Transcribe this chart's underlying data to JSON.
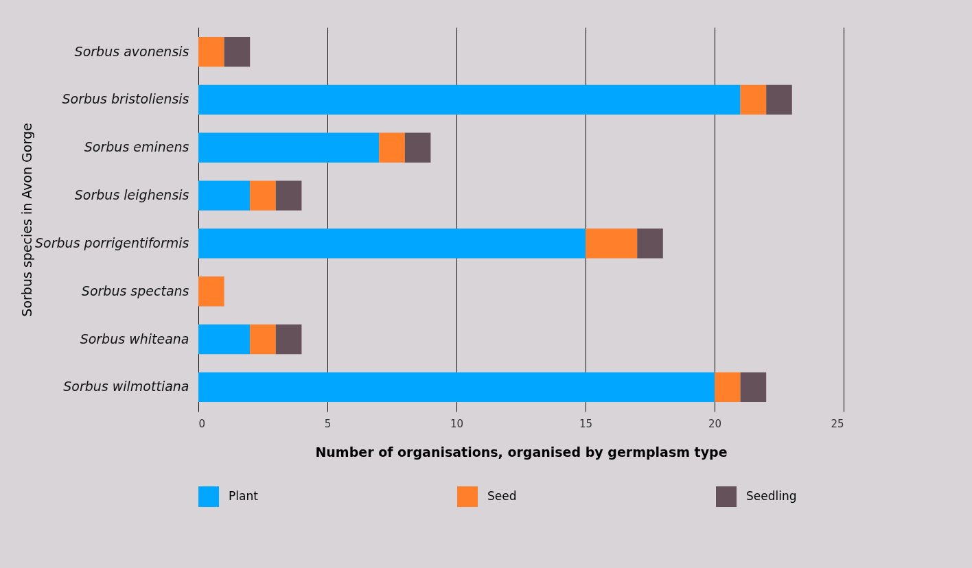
{
  "chart_data": {
    "type": "bar",
    "orientation": "horizontal",
    "stacked": true,
    "xlabel": "Number of organisations, organised by germplasm type",
    "ylabel": "Sorbus species in Avon Gorge",
    "categories": [
      "Sorbus avonensis",
      "Sorbus bristoliensis",
      "Sorbus eminens",
      "Sorbus leighensis",
      "Sorbus porrigentiformis",
      "Sorbus spectans",
      "Sorbus whiteana",
      "Sorbus wilmottiana"
    ],
    "series": [
      {
        "name": "Plant",
        "color": "#00a6ff",
        "values": [
          0,
          21,
          7,
          2,
          15,
          0,
          2,
          20
        ]
      },
      {
        "name": "Seed",
        "color": "#ff7f2a",
        "values": [
          1,
          1,
          1,
          1,
          2,
          1,
          1,
          1
        ]
      },
      {
        "name": "Seedling",
        "color": "#645159",
        "values": [
          1,
          1,
          1,
          1,
          1,
          0,
          1,
          1
        ]
      }
    ],
    "xlim": [
      0,
      25
    ],
    "xticks": [
      0,
      5,
      10,
      15,
      20,
      25
    ],
    "grid": "x",
    "legend": "bottom"
  }
}
